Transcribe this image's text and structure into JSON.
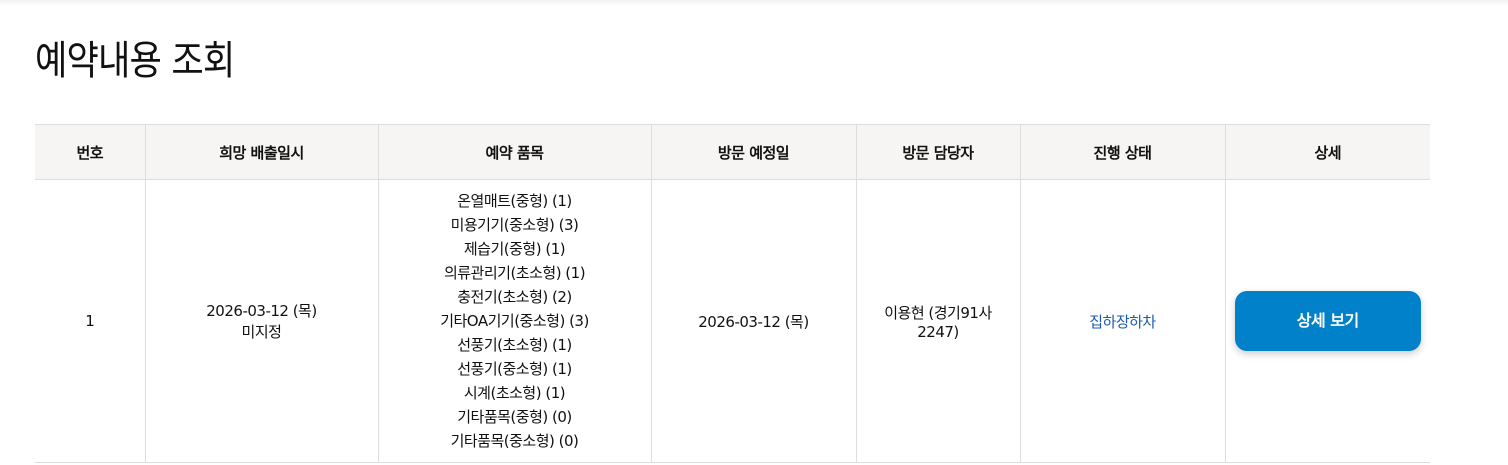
{
  "page_title": "예약내용 조회",
  "columns": [
    "번호",
    "희망 배출일시",
    "예약 품목",
    "방문 예정일",
    "방문 담당자",
    "진행 상태",
    "상세"
  ],
  "rows": [
    {
      "number": "1",
      "desired_date": "2026-03-12 (목)",
      "desired_time": "미지정",
      "items": [
        "온열매트(중형) (1)",
        "미용기기(중소형) (3)",
        "제습기(중형) (1)",
        "의류관리기(초소형) (1)",
        "충전기(초소형) (2)",
        "기타OA기기(중소형) (3)",
        "선풍기(초소형) (1)",
        "선풍기(중소형) (1)",
        "시계(초소형) (1)",
        "기타품목(중형) (0)",
        "기타품목(중소형) (0)"
      ],
      "visit_date": "2026-03-12 (목)",
      "manager_line1": "이용현 (경기91사",
      "manager_line2": "2247)",
      "status": "집하장하차",
      "detail_button": "상세 보기"
    }
  ],
  "colors": {
    "button": "#0081c9",
    "status": "#1a5cb0",
    "header_bg": "#f6f5f3"
  }
}
